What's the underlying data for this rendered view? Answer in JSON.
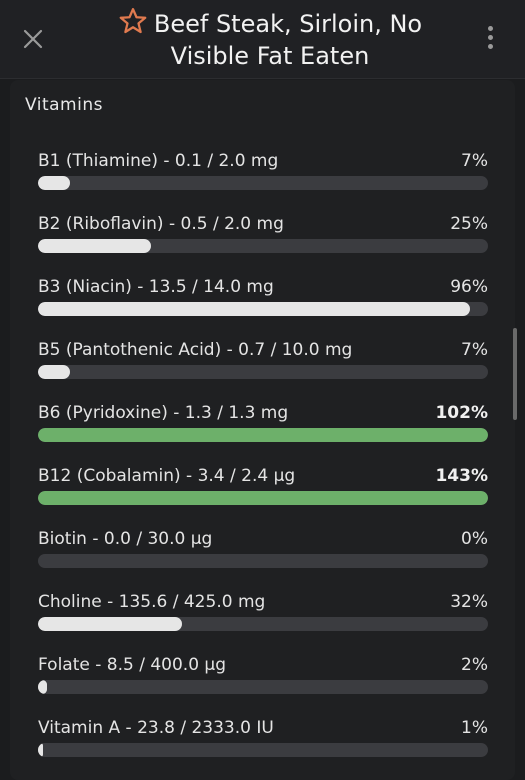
{
  "header": {
    "title": "Beef Steak, Sirloin, No Visible Fat Eaten",
    "close_icon": "close-icon",
    "star_icon": "star-outline-icon",
    "more_icon": "more-vertical-icon"
  },
  "section": {
    "title": "Vitamins"
  },
  "colors": {
    "bar_normal": "#e6e6e6",
    "bar_over": "#6db06a",
    "track": "#3b3c40",
    "star": "#e07a4f"
  },
  "nutrients": [
    {
      "label": "B1 (Thiamine) - 0.1 / 2.0 mg",
      "percent": "7%",
      "fill": 7,
      "over": false
    },
    {
      "label": "B2 (Riboflavin) - 0.5 / 2.0 mg",
      "percent": "25%",
      "fill": 25,
      "over": false
    },
    {
      "label": "B3 (Niacin) - 13.5 / 14.0 mg",
      "percent": "96%",
      "fill": 96,
      "over": false
    },
    {
      "label": "B5 (Pantothenic Acid) - 0.7 / 10.0 mg",
      "percent": "7%",
      "fill": 7,
      "over": false
    },
    {
      "label": "B6 (Pyridoxine) - 1.3 / 1.3 mg",
      "percent": "102%",
      "fill": 100,
      "over": true
    },
    {
      "label": "B12 (Cobalamin) - 3.4 / 2.4 µg",
      "percent": "143%",
      "fill": 100,
      "over": true
    },
    {
      "label": "Biotin - 0.0 / 30.0 µg",
      "percent": "0%",
      "fill": 0,
      "over": false
    },
    {
      "label": "Choline - 135.6 / 425.0 mg",
      "percent": "32%",
      "fill": 32,
      "over": false
    },
    {
      "label": "Folate - 8.5 / 400.0 µg",
      "percent": "2%",
      "fill": 2,
      "over": false
    },
    {
      "label": "Vitamin A - 23.8 / 2333.0 IU",
      "percent": "1%",
      "fill": 1,
      "over": false
    }
  ]
}
